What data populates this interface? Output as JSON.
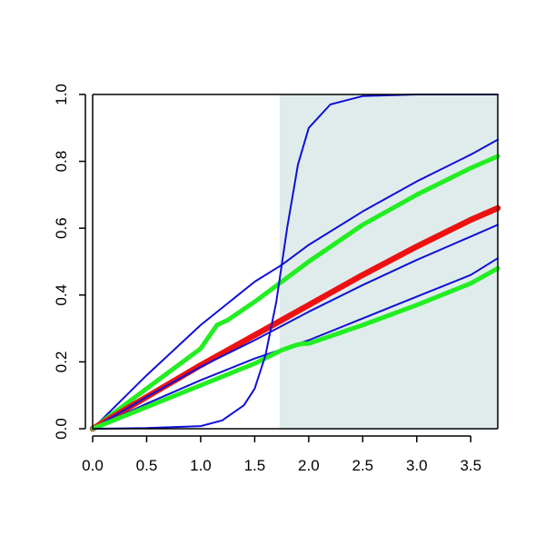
{
  "chart_data": {
    "type": "line",
    "title": "",
    "xlabel": "",
    "ylabel": "",
    "xlim": [
      0.0,
      3.75
    ],
    "ylim": [
      0.0,
      1.0
    ],
    "x_ticks": [
      "0.0",
      "0.5",
      "1.0",
      "1.5",
      "2.0",
      "2.5",
      "3.0",
      "3.5"
    ],
    "y_ticks": [
      "0.0",
      "0.2",
      "0.4",
      "0.6",
      "0.8",
      "1.0"
    ],
    "grid": false,
    "legend": "none",
    "shaded_region": {
      "x_from": 1.73,
      "x_to": 3.75,
      "color": "#e0ecec"
    },
    "colors": {
      "blue": "#1010d8",
      "green": "#22ee22",
      "red": "#ee1111",
      "shade": "#e0ecec"
    },
    "series": [
      {
        "color": "#1010d8",
        "width": "thin",
        "x": [
          0.0,
          0.5,
          1.0,
          1.5,
          1.75,
          2.0,
          2.5,
          3.0,
          3.5,
          3.75
        ],
        "y": [
          0.0,
          0.16,
          0.31,
          0.44,
          0.49,
          0.55,
          0.65,
          0.74,
          0.82,
          0.865
        ]
      },
      {
        "color": "#22ee22",
        "width": "thick",
        "x": [
          0.0,
          0.5,
          1.0,
          1.15,
          1.25,
          1.5,
          1.75,
          2.0,
          2.5,
          3.0,
          3.5,
          3.75
        ],
        "y": [
          0.0,
          0.12,
          0.24,
          0.31,
          0.325,
          0.38,
          0.44,
          0.5,
          0.61,
          0.7,
          0.78,
          0.815
        ]
      },
      {
        "color": "#ee1111",
        "width": "thickest",
        "x": [
          0.0,
          0.5,
          1.0,
          1.5,
          2.0,
          2.5,
          3.0,
          3.5,
          3.75
        ],
        "y": [
          0.0,
          0.095,
          0.19,
          0.28,
          0.37,
          0.46,
          0.545,
          0.625,
          0.66
        ]
      },
      {
        "color": "#1010d8",
        "width": "thin",
        "x": [
          0.0,
          0.5,
          1.0,
          1.5,
          2.0,
          2.5,
          3.0,
          3.5,
          3.75
        ],
        "y": [
          0.0,
          0.095,
          0.185,
          0.265,
          0.35,
          0.43,
          0.505,
          0.575,
          0.61
        ]
      },
      {
        "color": "#1010d8",
        "width": "thin",
        "x": [
          0.0,
          0.5,
          1.0,
          1.5,
          2.0,
          2.5,
          3.0,
          3.5,
          3.75
        ],
        "y": [
          0.0,
          0.075,
          0.145,
          0.21,
          0.265,
          0.33,
          0.395,
          0.46,
          0.51
        ]
      },
      {
        "color": "#22ee22",
        "width": "thick",
        "x": [
          0.0,
          0.5,
          1.0,
          1.5,
          1.75,
          1.88,
          1.95,
          2.0,
          2.5,
          3.0,
          3.5,
          3.75
        ],
        "y": [
          0.0,
          0.065,
          0.13,
          0.195,
          0.235,
          0.25,
          0.255,
          0.255,
          0.31,
          0.37,
          0.435,
          0.48
        ]
      },
      {
        "color": "#1010d8",
        "width": "thin",
        "x": [
          0.0,
          0.5,
          1.0,
          1.2,
          1.4,
          1.5,
          1.6,
          1.7,
          1.8,
          1.9,
          2.0,
          2.2,
          2.5,
          3.0,
          3.5,
          3.75
        ],
        "y": [
          0.0,
          0.002,
          0.008,
          0.025,
          0.07,
          0.12,
          0.22,
          0.38,
          0.6,
          0.79,
          0.9,
          0.97,
          0.995,
          1.0,
          1.0,
          1.0
        ]
      }
    ]
  }
}
